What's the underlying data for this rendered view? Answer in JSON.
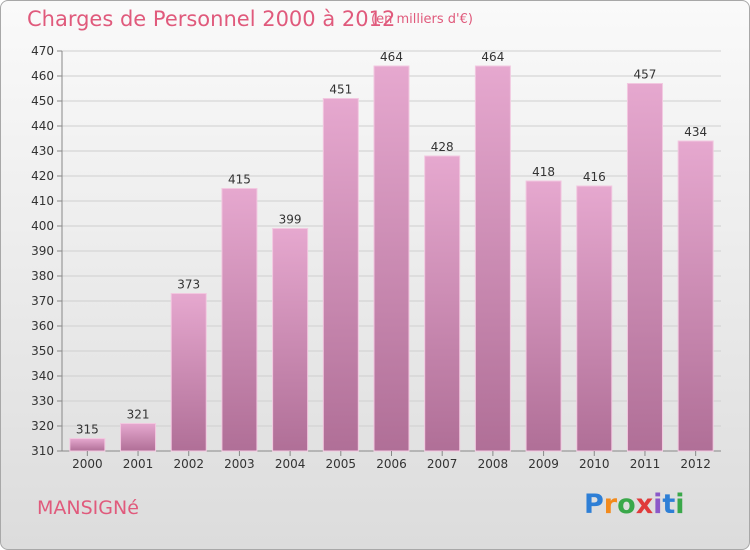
{
  "header": {
    "title": "Charges de Personnel 2000 à 2012",
    "subtitle": "(en milliers d'€)"
  },
  "footer": {
    "commune": "MANSIGNé",
    "logo_letters": [
      "P",
      "r",
      "o",
      "x",
      "i",
      "t",
      "i"
    ],
    "logo_colors": [
      "#2e7fd6",
      "#f28a1c",
      "#3aa84a",
      "#e03b3b",
      "#8b59c9",
      "#2e7fd6",
      "#3aa84a"
    ]
  },
  "chart_data": {
    "type": "bar",
    "categories": [
      "2000",
      "2001",
      "2002",
      "2003",
      "2004",
      "2005",
      "2006",
      "2007",
      "2008",
      "2009",
      "2010",
      "2011",
      "2012"
    ],
    "values": [
      315,
      321,
      373,
      415,
      399,
      451,
      464,
      428,
      464,
      418,
      416,
      457,
      434
    ],
    "ylim": [
      310,
      470
    ],
    "yticks": [
      310,
      320,
      330,
      340,
      350,
      360,
      370,
      380,
      390,
      400,
      410,
      420,
      430,
      440,
      450,
      460,
      470
    ],
    "grid": true,
    "bar_color": "#d98ab4"
  }
}
